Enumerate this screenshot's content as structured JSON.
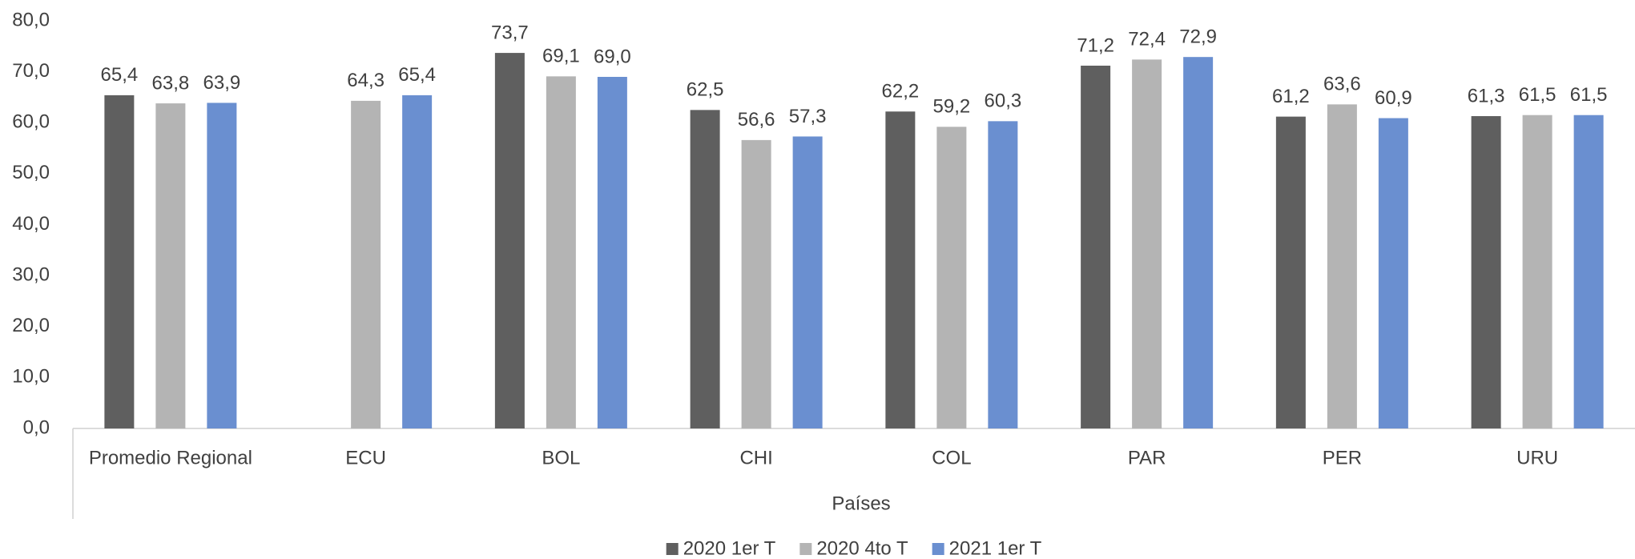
{
  "chart_data": {
    "type": "bar",
    "categories": [
      "Promedio Regional",
      "ECU",
      "BOL",
      "CHI",
      "COL",
      "PAR",
      "PER",
      "URU"
    ],
    "series": [
      {
        "name": "2020 1er T",
        "color": "#5f5f5f",
        "values": [
          65.4,
          null,
          73.7,
          62.5,
          62.2,
          71.2,
          61.2,
          61.3
        ],
        "value_labels": [
          "65,4",
          null,
          "73,7",
          "62,5",
          "62,2",
          "71,2",
          "61,2",
          "61,3"
        ]
      },
      {
        "name": "2020 4to T",
        "color": "#b4b4b4",
        "values": [
          63.8,
          64.3,
          69.1,
          56.6,
          59.2,
          72.4,
          63.6,
          61.5
        ],
        "value_labels": [
          "63,8",
          "64,3",
          "69,1",
          "56,6",
          "59,2",
          "72,4",
          "63,6",
          "61,5"
        ]
      },
      {
        "name": "2021 1er T",
        "color": "#6a8fd0",
        "values": [
          63.9,
          65.4,
          69.0,
          57.3,
          60.3,
          72.9,
          60.9,
          61.5
        ],
        "value_labels": [
          "63,9",
          "65,4",
          "69,0",
          "57,3",
          "60,3",
          "72,9",
          "60,9",
          "61,5"
        ]
      }
    ],
    "x_label": "Países",
    "ylim": [
      0,
      80
    ],
    "yticks": [
      {
        "value": 0,
        "label": "0,0"
      },
      {
        "value": 10,
        "label": "10,0"
      },
      {
        "value": 20,
        "label": "20,0"
      },
      {
        "value": 30,
        "label": "30,0"
      },
      {
        "value": 40,
        "label": "40,0"
      },
      {
        "value": 50,
        "label": "50,0"
      },
      {
        "value": 60,
        "label": "60,0"
      },
      {
        "value": 70,
        "label": "70,0"
      },
      {
        "value": 80,
        "label": "80,0"
      }
    ],
    "grid": false,
    "legend": "bottom"
  }
}
